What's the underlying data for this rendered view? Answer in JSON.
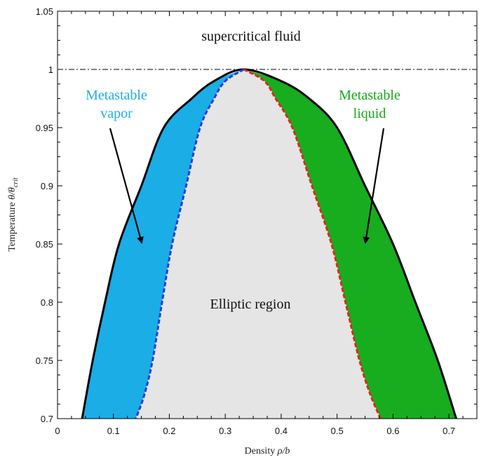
{
  "chart_data": {
    "type": "area",
    "xlabel_prefix": "Density ",
    "xlabel_symbol": "ρ/b",
    "ylabel_prefix": "Temperature ",
    "ylabel_symbol": "θ/θ",
    "ylabel_sub": "crit",
    "xlim": [
      0,
      0.75
    ],
    "ylim": [
      0.7,
      1.05
    ],
    "x_ticks": [
      0,
      0.1,
      0.2,
      0.3,
      0.4,
      0.5,
      0.6,
      0.7
    ],
    "x_tick_labels": [
      "0",
      "0.1",
      "0.2",
      "0.3",
      "0.4",
      "0.5",
      "0.6",
      "0.7"
    ],
    "y_ticks": [
      0.7,
      0.75,
      0.8,
      0.85,
      0.9,
      0.95,
      1,
      1.05
    ],
    "y_tick_labels": [
      "0.7",
      "0.75",
      "0.8",
      "0.85",
      "0.9",
      "0.95",
      "1",
      "1.05"
    ],
    "critical_line": 1,
    "binodal": {
      "name": "binodal",
      "color": "#000000",
      "left_x": [
        0.333,
        0.28,
        0.24,
        0.19,
        0.15,
        0.11,
        0.085,
        0.063,
        0.044
      ],
      "left_y": [
        1.0,
        0.99,
        0.975,
        0.95,
        0.9,
        0.85,
        0.8,
        0.75,
        0.7
      ],
      "right_x": [
        0.333,
        0.4,
        0.45,
        0.5,
        0.55,
        0.6,
        0.64,
        0.68,
        0.713
      ],
      "right_y": [
        1.0,
        0.99,
        0.975,
        0.95,
        0.9,
        0.85,
        0.8,
        0.75,
        0.7
      ]
    },
    "spinodal_vapor": {
      "color": "#1f3fe0",
      "x": [
        0.333,
        0.3,
        0.28,
        0.255,
        0.23,
        0.205,
        0.187,
        0.17,
        0.155,
        0.14
      ],
      "y": [
        1.0,
        0.99,
        0.975,
        0.95,
        0.9,
        0.85,
        0.8,
        0.75,
        0.72,
        0.7
      ]
    },
    "spinodal_liquid": {
      "color": "#e8231c",
      "x": [
        0.333,
        0.37,
        0.39,
        0.42,
        0.455,
        0.49,
        0.515,
        0.54,
        0.56,
        0.578
      ],
      "y": [
        1.0,
        0.99,
        0.975,
        0.95,
        0.9,
        0.85,
        0.8,
        0.75,
        0.72,
        0.7
      ]
    },
    "regions": {
      "metastable_vapor_color": "#1aade6",
      "metastable_liquid_color": "#17ad1f",
      "elliptic_color": "#e5e5e5"
    },
    "annotations": {
      "supercritical": "supercritical fluid",
      "elliptic": "Elliptic region",
      "vapor_line1": "Metastable",
      "vapor_line2": "vapor",
      "liquid_line1": "Metastable",
      "liquid_line2": "liquid"
    }
  }
}
